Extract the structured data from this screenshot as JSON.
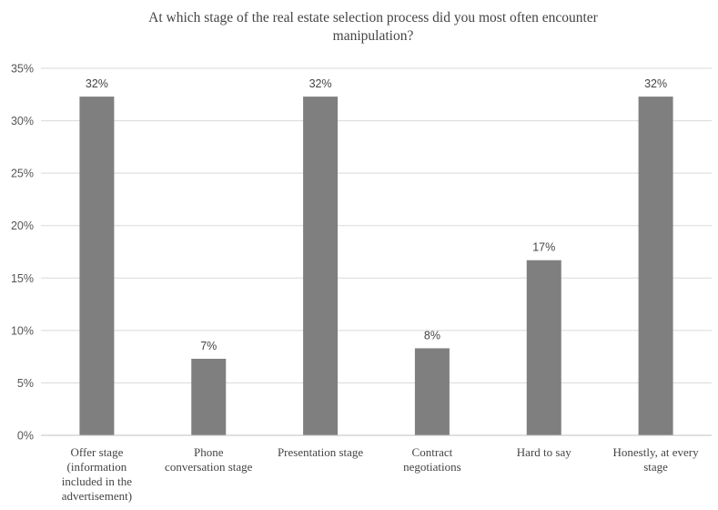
{
  "chart_data": {
    "type": "bar",
    "title": "At which stage of the real estate selection process did you most often encounter manipulation?",
    "title_lines": [
      "At which stage of the real estate selection process did you most often encounter",
      "manipulation?"
    ],
    "categories": [
      "Offer stage (information included in the advertisement)",
      "Phone conversation stage",
      "Presentation stage",
      "Contract negotiations",
      "Hard to say",
      "Honestly, at every stage"
    ],
    "category_lines": [
      [
        "Offer stage",
        "(information",
        "included in the",
        "advertisement)"
      ],
      [
        "Phone",
        "conversation stage"
      ],
      [
        "Presentation stage"
      ],
      [
        "Contract",
        "negotiations"
      ],
      [
        "Hard to say"
      ],
      [
        "Honestly, at every",
        "stage"
      ]
    ],
    "values": [
      32.3,
      7.3,
      32.3,
      8.3,
      16.7,
      32.3
    ],
    "data_labels": [
      "32%",
      "7%",
      "32%",
      "8%",
      "17%",
      "32%"
    ],
    "ylim": [
      0,
      35
    ],
    "yticks": [
      0,
      5,
      10,
      15,
      20,
      25,
      30,
      35
    ],
    "ytick_labels": [
      "0%",
      "5%",
      "10%",
      "15%",
      "20%",
      "25%",
      "30%",
      "35%"
    ],
    "grid": true,
    "bar_color": "#7f7f80"
  }
}
